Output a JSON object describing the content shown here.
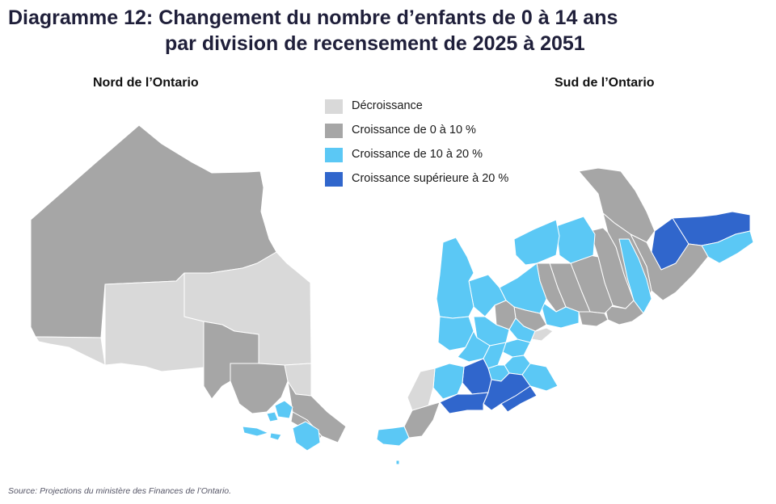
{
  "title": {
    "line1": "Diagramme 12: Changement du nombre d’enfants de 0 à 14 ans",
    "line2": "par division de recensement de 2025 à 2051"
  },
  "panels": {
    "north": "Nord de l’Ontario",
    "south": "Sud de l’Ontario"
  },
  "legend": [
    {
      "label": "Décroissance",
      "color": "#d9d9d9"
    },
    {
      "label": "Croissance de 0 à 10 %",
      "color": "#a6a6a6"
    },
    {
      "label": "Croissance de 10 à 20 %",
      "color": "#5bc8f5"
    },
    {
      "label": "Croissance supérieure à 20 %",
      "color": "#3066cc"
    }
  ],
  "source": "Source: Projections du ministère des Finances de l’Ontario."
}
